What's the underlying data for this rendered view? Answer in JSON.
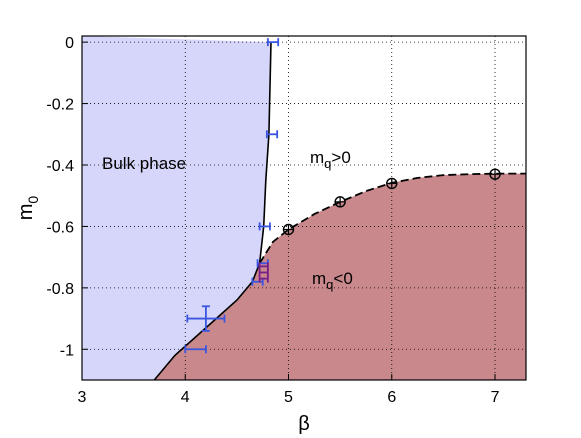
{
  "chart_data": {
    "type": "area",
    "xlabel": "β",
    "ylabel": "m",
    "ylabel_sub": "0",
    "xlim": [
      3,
      7.3
    ],
    "ylim": [
      -1.1,
      0.02
    ],
    "xticks": [
      3,
      4,
      5,
      6,
      7
    ],
    "yticks": [
      0,
      -0.2,
      -0.4,
      -0.6,
      -0.8,
      -1
    ],
    "xtick_labels": [
      "3",
      "4",
      "5",
      "6",
      "7"
    ],
    "ytick_labels": [
      "0",
      "-0.2",
      "-0.4",
      "-0.6",
      "-0.8",
      "-1"
    ],
    "grid": true,
    "colors": {
      "bulk": "#d6d6fa",
      "mq_neg": "#c9888c",
      "bulk_errorbar": "#3a55e0",
      "mq_errorbar": "#7a1f8a",
      "critical_point": "#000000"
    },
    "regions": [
      {
        "label": "Bulk phase",
        "boundary": [
          [
            4.83,
            0.0
          ],
          [
            4.81,
            -0.3
          ],
          [
            4.78,
            -0.45
          ],
          [
            4.76,
            -0.6
          ],
          [
            4.72,
            -0.72
          ],
          [
            4.65,
            -0.78
          ],
          [
            4.5,
            -0.84
          ],
          [
            4.3,
            -0.9
          ],
          [
            4.1,
            -0.96
          ],
          [
            3.9,
            -1.02
          ],
          [
            3.7,
            -1.1
          ]
        ]
      },
      {
        "label_main": "m",
        "label_sub": "q",
        "label_rest": "<0",
        "boundary": [
          [
            3.7,
            -1.1
          ],
          [
            3.9,
            -1.02
          ],
          [
            4.1,
            -0.96
          ],
          [
            4.3,
            -0.9
          ],
          [
            4.5,
            -0.84
          ],
          [
            4.65,
            -0.78
          ],
          [
            4.72,
            -0.72
          ],
          [
            4.85,
            -0.65
          ],
          [
            5.0,
            -0.61
          ],
          [
            5.25,
            -0.56
          ],
          [
            5.5,
            -0.52
          ],
          [
            5.75,
            -0.485
          ],
          [
            6.0,
            -0.458
          ],
          [
            6.25,
            -0.442
          ],
          [
            6.5,
            -0.433
          ],
          [
            6.75,
            -0.43
          ],
          [
            7.0,
            -0.428
          ],
          [
            7.3,
            -0.428
          ]
        ]
      }
    ],
    "mq_pos": {
      "label_main": "m",
      "label_sub": "q",
      "label_rest": ">0"
    },
    "critical_points": [
      {
        "x": 5.0,
        "y": -0.61
      },
      {
        "x": 5.5,
        "y": -0.52
      },
      {
        "x": 6.0,
        "y": -0.46
      },
      {
        "x": 7.0,
        "y": -0.43
      }
    ],
    "bulk_errorbars": [
      {
        "x": 4.85,
        "y": 0.0,
        "xerr": 0.05
      },
      {
        "x": 4.84,
        "y": -0.3,
        "xerr": 0.05
      },
      {
        "x": 4.77,
        "y": -0.6,
        "xerr": 0.05
      },
      {
        "x": 4.75,
        "y": -0.72,
        "xerr": 0.05
      },
      {
        "x": 4.7,
        "y": -0.78,
        "xerr": 0.05
      },
      {
        "x": 4.2,
        "y": -0.9,
        "xerr": 0.18,
        "yerr": 0.04
      },
      {
        "x": 4.1,
        "y": -1.0,
        "xerr": 0.1
      }
    ],
    "mq_errorbars": [
      {
        "x": 4.76,
        "y": -0.73,
        "xerr": 0.04
      },
      {
        "x": 4.76,
        "y": -0.75,
        "xerr": 0.04
      },
      {
        "x": 4.76,
        "y": -0.77,
        "xerr": 0.04
      }
    ]
  }
}
